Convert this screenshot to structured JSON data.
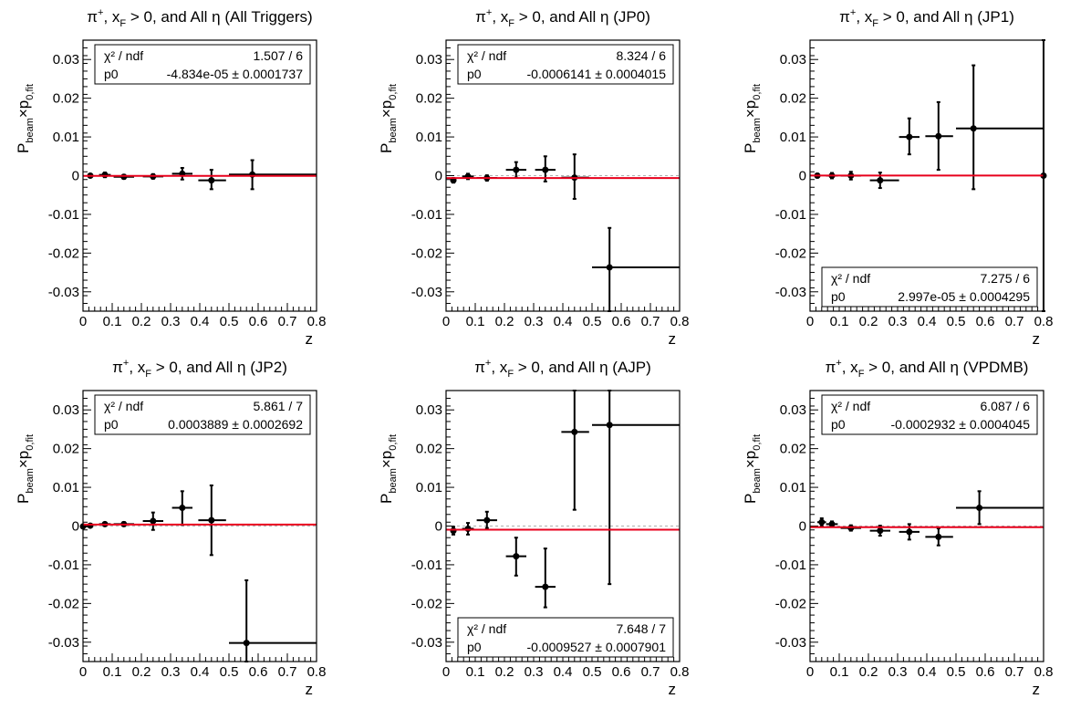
{
  "chart_data": [
    {
      "type": "scatter",
      "title": "π⁺, x_F > 0, and All η (All Triggers)",
      "title_parts": {
        "prefix": "π",
        "sup": "+",
        "mid1": ", x",
        "sub": "F",
        "mid2": " > 0, and All ",
        "eta": "η",
        "suffix": " (All Triggers)"
      },
      "xlabel": "z",
      "ylabel": {
        "main": "P",
        "sub1": "beam",
        "times": "×p",
        "sub2": "0,fit"
      },
      "xlim": [
        0,
        0.8
      ],
      "ylim": [
        -0.035,
        0.035
      ],
      "xticks": [
        "0",
        "0.1",
        "0.2",
        "0.3",
        "0.4",
        "0.5",
        "0.6",
        "0.7",
        "0.8"
      ],
      "yticks": [
        "-0.03",
        "-0.02",
        "-0.01",
        "0",
        "0.01",
        "0.02",
        "0.03"
      ],
      "fit": {
        "p0": -4.834e-05,
        "color": "#e8001c"
      },
      "stats": {
        "label1": "χ² / ndf",
        "value1": "1.507 / 6",
        "label2": "p0",
        "value2": "-4.834e-05 ± 0.0001737",
        "position": "top"
      },
      "points": [
        {
          "x": 0.025,
          "y": 0.0,
          "xlo": 0.015,
          "xhi": 0.035,
          "ylo": -0.0004,
          "yhi": 0.0004
        },
        {
          "x": 0.075,
          "y": 0.0002,
          "xlo": 0.055,
          "xhi": 0.095,
          "ylo": -0.0004,
          "yhi": 0.0008
        },
        {
          "x": 0.14,
          "y": -0.0003,
          "xlo": 0.105,
          "xhi": 0.175,
          "ylo": -0.0008,
          "yhi": 0.0002
        },
        {
          "x": 0.24,
          "y": -0.0002,
          "xlo": 0.205,
          "xhi": 0.275,
          "ylo": -0.0008,
          "yhi": 0.0004
        },
        {
          "x": 0.34,
          "y": 0.0005,
          "xlo": 0.305,
          "xhi": 0.375,
          "ylo": -0.001,
          "yhi": 0.002
        },
        {
          "x": 0.44,
          "y": -0.0012,
          "xlo": 0.395,
          "xhi": 0.49,
          "ylo": -0.0035,
          "yhi": 0.0015
        },
        {
          "x": 0.58,
          "y": 0.0003,
          "xlo": 0.5,
          "xhi": 0.8,
          "ylo": -0.0035,
          "yhi": 0.004
        }
      ]
    },
    {
      "type": "scatter",
      "title": "π⁺, x_F > 0, and All η (JP0)",
      "title_parts": {
        "prefix": "π",
        "sup": "+",
        "mid1": ", x",
        "sub": "F",
        "mid2": " > 0, and All ",
        "eta": "η",
        "suffix": " (JP0)"
      },
      "xlabel": "z",
      "ylabel": {
        "main": "P",
        "sub1": "beam",
        "times": "×p",
        "sub2": "0,fit"
      },
      "xlim": [
        0,
        0.8
      ],
      "ylim": [
        -0.035,
        0.035
      ],
      "xticks": [
        "0",
        "0.1",
        "0.2",
        "0.3",
        "0.4",
        "0.5",
        "0.6",
        "0.7",
        "0.8"
      ],
      "yticks": [
        "-0.03",
        "-0.02",
        "-0.01",
        "0",
        "0.01",
        "0.02",
        "0.03"
      ],
      "fit": {
        "p0": -0.0006141,
        "color": "#e8001c"
      },
      "stats": {
        "label1": "χ² / ndf",
        "value1": "8.324 / 6",
        "label2": "p0",
        "value2": "-0.0006141 ± 0.0004015",
        "position": "top"
      },
      "points": [
        {
          "x": 0.025,
          "y": -0.0012,
          "xlo": 0.015,
          "xhi": 0.035,
          "ylo": -0.0018,
          "yhi": -0.0006
        },
        {
          "x": 0.075,
          "y": -0.0002,
          "xlo": 0.055,
          "xhi": 0.095,
          "ylo": -0.0009,
          "yhi": 0.0005
        },
        {
          "x": 0.14,
          "y": -0.0006,
          "xlo": 0.105,
          "xhi": 0.175,
          "ylo": -0.0013,
          "yhi": 0.0001
        },
        {
          "x": 0.24,
          "y": 0.0015,
          "xlo": 0.205,
          "xhi": 0.275,
          "ylo": -0.0005,
          "yhi": 0.0035
        },
        {
          "x": 0.34,
          "y": 0.0015,
          "xlo": 0.305,
          "xhi": 0.375,
          "ylo": -0.0015,
          "yhi": 0.005
        },
        {
          "x": 0.44,
          "y": -0.0005,
          "xlo": 0.395,
          "xhi": 0.49,
          "ylo": -0.006,
          "yhi": 0.0055
        },
        {
          "x": 0.56,
          "y": -0.0237,
          "xlo": 0.5,
          "xhi": 0.8,
          "ylo": -0.035,
          "yhi": -0.0135
        }
      ]
    },
    {
      "type": "scatter",
      "title": "π⁺, x_F > 0, and All η (JP1)",
      "title_parts": {
        "prefix": "π",
        "sup": "+",
        "mid1": ", x",
        "sub": "F",
        "mid2": " > 0, and All ",
        "eta": "η",
        "suffix": " (JP1)"
      },
      "xlabel": "z",
      "ylabel": {
        "main": "P",
        "sub1": "beam",
        "times": "×p",
        "sub2": "0,fit"
      },
      "xlim": [
        0,
        0.8
      ],
      "ylim": [
        -0.035,
        0.035
      ],
      "xticks": [
        "0",
        "0.1",
        "0.2",
        "0.3",
        "0.4",
        "0.5",
        "0.6",
        "0.7",
        "0.8"
      ],
      "yticks": [
        "-0.03",
        "-0.02",
        "-0.01",
        "0",
        "0.01",
        "0.02",
        "0.03"
      ],
      "fit": {
        "p0": 2.997e-05,
        "color": "#e8001c"
      },
      "stats": {
        "label1": "χ² / ndf",
        "value1": "7.275 / 6",
        "label2": "p0",
        "value2": "2.997e-05 ± 0.0004295",
        "position": "bottom"
      },
      "points": [
        {
          "x": 0.025,
          "y": 0.0,
          "xlo": 0.015,
          "xhi": 0.035,
          "ylo": -0.0005,
          "yhi": 0.0005
        },
        {
          "x": 0.075,
          "y": 0.0,
          "xlo": 0.055,
          "xhi": 0.095,
          "ylo": -0.0007,
          "yhi": 0.0007
        },
        {
          "x": 0.14,
          "y": 0.0,
          "xlo": 0.105,
          "xhi": 0.175,
          "ylo": -0.001,
          "yhi": 0.001
        },
        {
          "x": 0.24,
          "y": -0.0012,
          "xlo": 0.205,
          "xhi": 0.305,
          "ylo": -0.0032,
          "yhi": 0.0008
        },
        {
          "x": 0.34,
          "y": 0.01,
          "xlo": 0.305,
          "xhi": 0.375,
          "ylo": 0.0055,
          "yhi": 0.0148
        },
        {
          "x": 0.44,
          "y": 0.0102,
          "xlo": 0.395,
          "xhi": 0.49,
          "ylo": 0.0015,
          "yhi": 0.019
        },
        {
          "x": 0.56,
          "y": 0.0122,
          "xlo": 0.5,
          "xhi": 0.8,
          "ylo": -0.0035,
          "yhi": 0.0285
        },
        {
          "x": 0.8,
          "y": 0.0,
          "xlo": 0.8,
          "xhi": 0.8,
          "ylo": -0.035,
          "yhi": 0.035
        }
      ]
    },
    {
      "type": "scatter",
      "title": "π⁺, x_F > 0, and All η (JP2)",
      "title_parts": {
        "prefix": "π",
        "sup": "+",
        "mid1": ", x",
        "sub": "F",
        "mid2": " > 0, and All ",
        "eta": "η",
        "suffix": " (JP2)"
      },
      "xlabel": "z",
      "ylabel": {
        "main": "P",
        "sub1": "beam",
        "times": "×p",
        "sub2": "0,fit"
      },
      "xlim": [
        0,
        0.8
      ],
      "ylim": [
        -0.035,
        0.035
      ],
      "xticks": [
        "0",
        "0.1",
        "0.2",
        "0.3",
        "0.4",
        "0.5",
        "0.6",
        "0.7",
        "0.8"
      ],
      "yticks": [
        "-0.03",
        "-0.02",
        "-0.01",
        "0",
        "0.01",
        "0.02",
        "0.03"
      ],
      "fit": {
        "p0": 0.0003889,
        "color": "#e8001c"
      },
      "stats": {
        "label1": "χ² / ndf",
        "value1": "5.861 / 7",
        "label2": "p0",
        "value2": "0.0003889 ± 0.0002692",
        "position": "top"
      },
      "points": [
        {
          "x": 0.0,
          "y": -0.0001,
          "xlo": -0.005,
          "xhi": 0.015,
          "ylo": -0.0005,
          "yhi": 0.0003
        },
        {
          "x": 0.025,
          "y": 0.0001,
          "xlo": 0.015,
          "xhi": 0.035,
          "ylo": -0.0003,
          "yhi": 0.0005
        },
        {
          "x": 0.075,
          "y": 0.0005,
          "xlo": 0.055,
          "xhi": 0.095,
          "ylo": 0.0001,
          "yhi": 0.0009
        },
        {
          "x": 0.14,
          "y": 0.0005,
          "xlo": 0.105,
          "xhi": 0.175,
          "ylo": 0.0,
          "yhi": 0.001
        },
        {
          "x": 0.24,
          "y": 0.0013,
          "xlo": 0.205,
          "xhi": 0.275,
          "ylo": -0.001,
          "yhi": 0.0035
        },
        {
          "x": 0.34,
          "y": 0.0047,
          "xlo": 0.305,
          "xhi": 0.375,
          "ylo": 0.0003,
          "yhi": 0.009
        },
        {
          "x": 0.44,
          "y": 0.0015,
          "xlo": 0.395,
          "xhi": 0.49,
          "ylo": -0.0075,
          "yhi": 0.0105
        },
        {
          "x": 0.56,
          "y": -0.0302,
          "xlo": 0.5,
          "xhi": 0.8,
          "ylo": -0.035,
          "yhi": -0.014
        }
      ]
    },
    {
      "type": "scatter",
      "title": "π⁺, x_F > 0, and All η (AJP)",
      "title_parts": {
        "prefix": "π",
        "sup": "+",
        "mid1": ", x",
        "sub": "F",
        "mid2": " > 0, and All ",
        "eta": "η",
        "suffix": " (AJP)"
      },
      "xlabel": "z",
      "ylabel": {
        "main": "P",
        "sub1": "beam",
        "times": "×p",
        "sub2": "0,fit"
      },
      "xlim": [
        0,
        0.8
      ],
      "ylim": [
        -0.035,
        0.035
      ],
      "xticks": [
        "0",
        "0.1",
        "0.2",
        "0.3",
        "0.4",
        "0.5",
        "0.6",
        "0.7",
        "0.8"
      ],
      "yticks": [
        "-0.03",
        "-0.02",
        "-0.01",
        "0",
        "0.01",
        "0.02",
        "0.03"
      ],
      "fit": {
        "p0": -0.0009527,
        "color": "#e8001c"
      },
      "stats": {
        "label1": "χ² / ndf",
        "value1": "7.648 / 7",
        "label2": "p0",
        "value2": "-0.0009527 ± 0.0007901",
        "position": "bottom"
      },
      "points": [
        {
          "x": 0.025,
          "y": -0.0012,
          "xlo": 0.015,
          "xhi": 0.035,
          "ylo": -0.0022,
          "yhi": -0.0002
        },
        {
          "x": 0.075,
          "y": -0.0007,
          "xlo": 0.055,
          "xhi": 0.095,
          "ylo": -0.0022,
          "yhi": 0.0008
        },
        {
          "x": 0.14,
          "y": 0.0015,
          "xlo": 0.105,
          "xhi": 0.175,
          "ylo": -0.0005,
          "yhi": 0.0037
        },
        {
          "x": 0.24,
          "y": -0.0078,
          "xlo": 0.205,
          "xhi": 0.275,
          "ylo": -0.0128,
          "yhi": -0.003
        },
        {
          "x": 0.34,
          "y": -0.0157,
          "xlo": 0.305,
          "xhi": 0.375,
          "ylo": -0.021,
          "yhi": -0.0058
        },
        {
          "x": 0.44,
          "y": 0.0243,
          "xlo": 0.395,
          "xhi": 0.49,
          "ylo": 0.0042,
          "yhi": 0.035
        },
        {
          "x": 0.56,
          "y": 0.0261,
          "xlo": 0.5,
          "xhi": 0.8,
          "ylo": -0.015,
          "yhi": 0.035
        }
      ]
    },
    {
      "type": "scatter",
      "title": "π⁺, x_F > 0, and All η (VPDMB)",
      "title_parts": {
        "prefix": "π",
        "sup": "+",
        "mid1": ", x",
        "sub": "F",
        "mid2": " > 0, and All ",
        "eta": "η",
        "suffix": " (VPDMB)"
      },
      "xlabel": "z",
      "ylabel": {
        "main": "P",
        "sub1": "beam",
        "times": "×p",
        "sub2": "0,fit"
      },
      "xlim": [
        0,
        0.8
      ],
      "ylim": [
        -0.035,
        0.035
      ],
      "xticks": [
        "0",
        "0.1",
        "0.2",
        "0.3",
        "0.4",
        "0.5",
        "0.6",
        "0.7",
        "0.8"
      ],
      "yticks": [
        "-0.03",
        "-0.02",
        "-0.01",
        "0",
        "0.01",
        "0.02",
        "0.03"
      ],
      "fit": {
        "p0": -0.0002932,
        "color": "#e8001c"
      },
      "stats": {
        "label1": "χ² / ndf",
        "value1": "6.087 / 6",
        "label2": "p0",
        "value2": "-0.0002932 ± 0.0004045",
        "position": "top"
      },
      "points": [
        {
          "x": 0.04,
          "y": 0.001,
          "xlo": 0.025,
          "xhi": 0.055,
          "ylo": 0.0,
          "yhi": 0.002
        },
        {
          "x": 0.075,
          "y": 0.0005,
          "xlo": 0.055,
          "xhi": 0.095,
          "ylo": -0.0002,
          "yhi": 0.0012
        },
        {
          "x": 0.14,
          "y": -0.0005,
          "xlo": 0.105,
          "xhi": 0.175,
          "ylo": -0.0012,
          "yhi": 0.0002
        },
        {
          "x": 0.24,
          "y": -0.0012,
          "xlo": 0.205,
          "xhi": 0.275,
          "ylo": -0.0025,
          "yhi": 0.0001
        },
        {
          "x": 0.34,
          "y": -0.0015,
          "xlo": 0.305,
          "xhi": 0.375,
          "ylo": -0.0035,
          "yhi": 0.0005
        },
        {
          "x": 0.44,
          "y": -0.0028,
          "xlo": 0.395,
          "xhi": 0.49,
          "ylo": -0.005,
          "yhi": -0.0006
        },
        {
          "x": 0.58,
          "y": 0.0047,
          "xlo": 0.5,
          "xhi": 0.8,
          "ylo": 0.0005,
          "yhi": 0.009
        }
      ]
    }
  ]
}
